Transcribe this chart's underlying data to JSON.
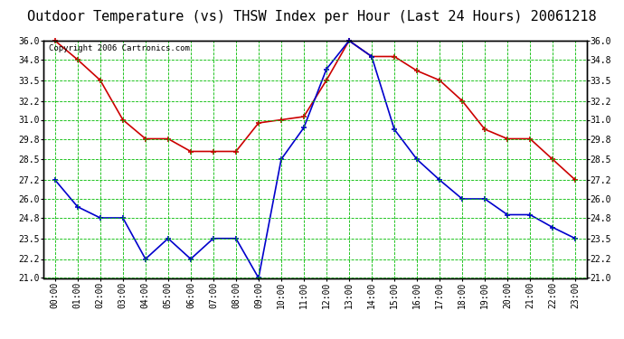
{
  "title": "Outdoor Temperature (vs) THSW Index per Hour (Last 24 Hours) 20061218",
  "copyright_text": "Copyright 2006 Cartronics.com",
  "hours": [
    "00:00",
    "01:00",
    "02:00",
    "03:00",
    "04:00",
    "05:00",
    "06:00",
    "07:00",
    "08:00",
    "09:00",
    "10:00",
    "11:00",
    "12:00",
    "13:00",
    "14:00",
    "15:00",
    "16:00",
    "17:00",
    "18:00",
    "19:00",
    "20:00",
    "21:00",
    "22:00",
    "23:00"
  ],
  "thsw_values": [
    36.0,
    34.8,
    33.5,
    31.0,
    29.8,
    29.8,
    29.0,
    29.0,
    29.0,
    30.8,
    31.0,
    31.2,
    33.5,
    36.0,
    35.0,
    35.0,
    34.1,
    33.5,
    32.2,
    30.4,
    29.8,
    29.8,
    28.5,
    27.2
  ],
  "temp_values": [
    27.2,
    25.5,
    24.8,
    24.8,
    22.2,
    23.5,
    22.2,
    23.5,
    23.5,
    21.0,
    28.5,
    30.5,
    34.2,
    36.0,
    35.0,
    30.4,
    28.5,
    27.2,
    26.0,
    26.0,
    25.0,
    25.0,
    24.2,
    23.5
  ],
  "thsw_color": "#cc0000",
  "temp_color": "#0000cc",
  "grid_color": "#00bb00",
  "background_color": "#ffffff",
  "border_color": "#000000",
  "title_color": "#000000",
  "ylim_min": 21.0,
  "ylim_max": 36.0,
  "yticks": [
    21.0,
    22.2,
    23.5,
    24.8,
    26.0,
    27.2,
    28.5,
    29.8,
    31.0,
    32.2,
    33.5,
    34.8,
    36.0
  ],
  "marker": "+",
  "marker_size": 5,
  "linewidth": 1.2,
  "title_fontsize": 11,
  "tick_fontsize": 7,
  "copyright_fontsize": 6.5
}
